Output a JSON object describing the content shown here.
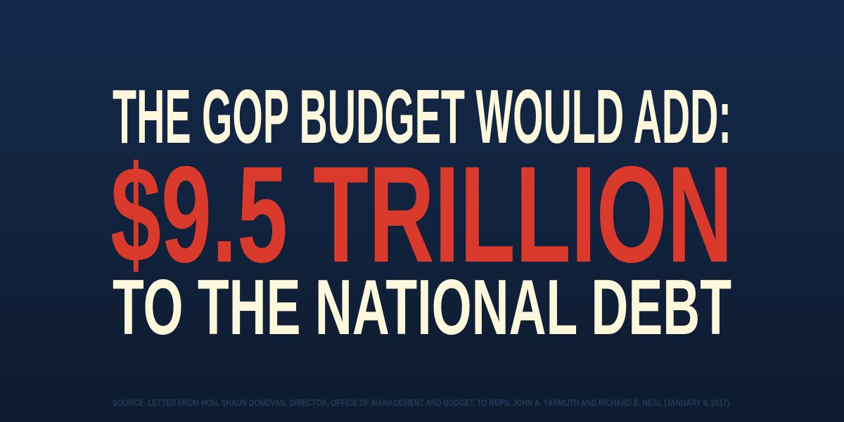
{
  "headline": {
    "line1": "THE GOP BUDGET WOULD ADD:",
    "amount": "$9.5 TRILLION",
    "line3": "TO THE NATIONAL DEBT"
  },
  "source": "SOURCE:  LETTER FROM HON. SHAUN DONOVAN, DIRECTOR, OFFICE OF MANAGEMENT AND BUDGET, TO REPS. JOHN A. YARMUTH AND RICHARD E. NEAL (JANUARY 9, 2017)."
}
